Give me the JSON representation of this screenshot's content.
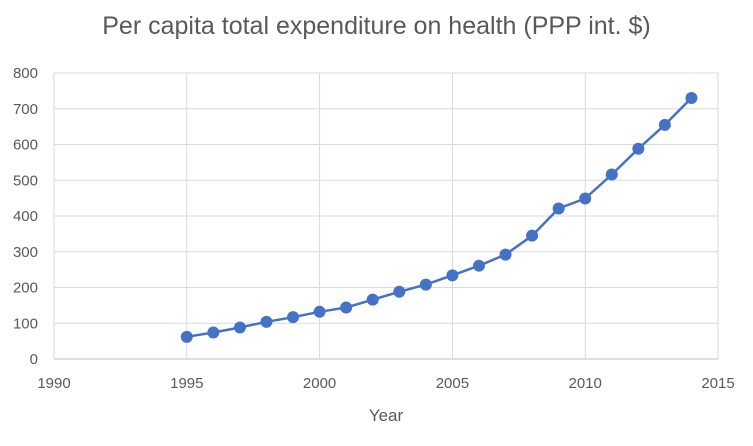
{
  "chart_data": {
    "type": "scatter",
    "title": "Per capita total expenditure on health (PPP int. $)",
    "xlabel": "Year",
    "ylabel": "",
    "xlim": [
      1990,
      2015
    ],
    "ylim": [
      0,
      800
    ],
    "x_ticks": [
      1990,
      1995,
      2000,
      2005,
      2010,
      2015
    ],
    "y_ticks": [
      0,
      100,
      200,
      300,
      400,
      500,
      600,
      700,
      800
    ],
    "grid": true,
    "legend": "none",
    "series": [
      {
        "color": "#4472c4",
        "x": [
          1995,
          1996,
          1997,
          1998,
          1999,
          2000,
          2001,
          2002,
          2003,
          2004,
          2005,
          2006,
          2007,
          2008,
          2009,
          2010,
          2011,
          2012,
          2013,
          2014
        ],
        "y": [
          62,
          74,
          88,
          104,
          117,
          132,
          144,
          166,
          188,
          208,
          234,
          261,
          292,
          345,
          421,
          449,
          516,
          588,
          655,
          730
        ]
      }
    ]
  }
}
